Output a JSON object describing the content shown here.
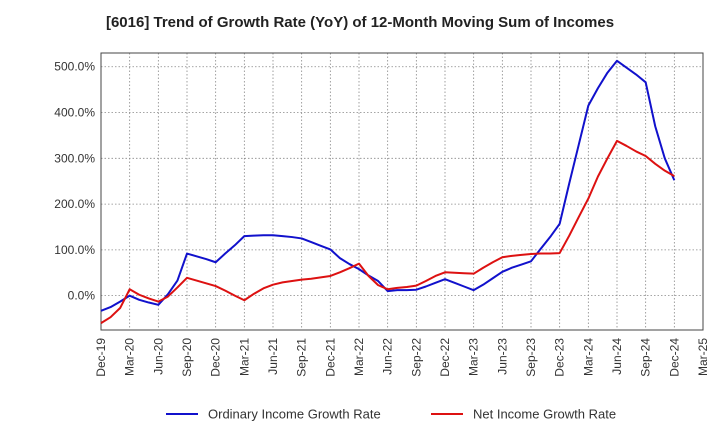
{
  "chart_data": {
    "type": "line",
    "title": "[6016]  Trend of Growth Rate (YoY) of 12-Month Moving Sum of Incomes",
    "xlabel": "",
    "ylabel": "",
    "x_tick_labels": [
      "Dec-19",
      "Mar-20",
      "Jun-20",
      "Sep-20",
      "Dec-20",
      "Mar-21",
      "Jun-21",
      "Sep-21",
      "Dec-21",
      "Mar-22",
      "Jun-22",
      "Sep-22",
      "Dec-22",
      "Mar-23",
      "Jun-23",
      "Sep-23",
      "Dec-23",
      "Mar-24",
      "Jun-24",
      "Sep-24",
      "Dec-24",
      "Mar-25"
    ],
    "y_ticks": [
      0,
      100,
      200,
      300,
      400,
      500
    ],
    "y_tick_labels": [
      "0.0%",
      "100.0%",
      "200.0%",
      "300.0%",
      "400.0%",
      "500.0%"
    ],
    "ylim": [
      -75,
      530
    ],
    "grid": true,
    "legend_position": "bottom",
    "x": [
      "Dec-19",
      "Jan-20",
      "Feb-20",
      "Mar-20",
      "Apr-20",
      "May-20",
      "Jun-20",
      "Jul-20",
      "Aug-20",
      "Sep-20",
      "Oct-20",
      "Nov-20",
      "Dec-20",
      "Jan-21",
      "Feb-21",
      "Mar-21",
      "Apr-21",
      "May-21",
      "Jun-21",
      "Jul-21",
      "Aug-21",
      "Sep-21",
      "Oct-21",
      "Nov-21",
      "Dec-21",
      "Jan-22",
      "Feb-22",
      "Mar-22",
      "Apr-22",
      "May-22",
      "Jun-22",
      "Jul-22",
      "Aug-22",
      "Sep-22",
      "Oct-22",
      "Nov-22",
      "Dec-22",
      "Jan-23",
      "Feb-23",
      "Mar-23",
      "Apr-23",
      "May-23",
      "Jun-23",
      "Jul-23",
      "Aug-23",
      "Sep-23",
      "Oct-23",
      "Nov-23",
      "Dec-23",
      "Jan-24",
      "Feb-24",
      "Mar-24",
      "Apr-24",
      "May-24",
      "Jun-24",
      "Jul-24",
      "Aug-24",
      "Sep-24",
      "Oct-24",
      "Nov-24",
      "Dec-24"
    ],
    "series": [
      {
        "name": "Ordinary Income Growth Rate",
        "color": "#1111cc",
        "values": [
          -33,
          -25,
          -13,
          0,
          -9,
          -15,
          -20,
          3,
          33,
          92,
          86,
          80,
          73,
          92,
          110,
          130,
          131,
          132,
          132,
          130,
          128,
          125,
          117,
          109,
          101,
          82,
          69,
          58,
          44,
          32,
          10,
          12,
          12,
          13,
          20,
          28,
          36,
          28,
          20,
          12,
          24,
          38,
          52,
          61,
          68,
          75,
          102,
          128,
          157,
          245,
          330,
          415,
          453,
          487,
          513,
          498,
          483,
          466,
          370,
          300,
          252
        ]
      },
      {
        "name": "Net Income Growth Rate",
        "color": "#dd1111",
        "values": [
          -60,
          -47,
          -27,
          14,
          2,
          -6,
          -13,
          -2,
          18,
          39,
          33,
          27,
          21,
          11,
          0,
          -10,
          4,
          16,
          24,
          29,
          32,
          35,
          37,
          40,
          43,
          51,
          60,
          70,
          43,
          23,
          14,
          17,
          19,
          22,
          32,
          43,
          51,
          50,
          49,
          48,
          61,
          73,
          84,
          87,
          89,
          91,
          92,
          92,
          93,
          131,
          172,
          212,
          260,
          300,
          338,
          327,
          315,
          305,
          288,
          273,
          261
        ]
      }
    ]
  }
}
